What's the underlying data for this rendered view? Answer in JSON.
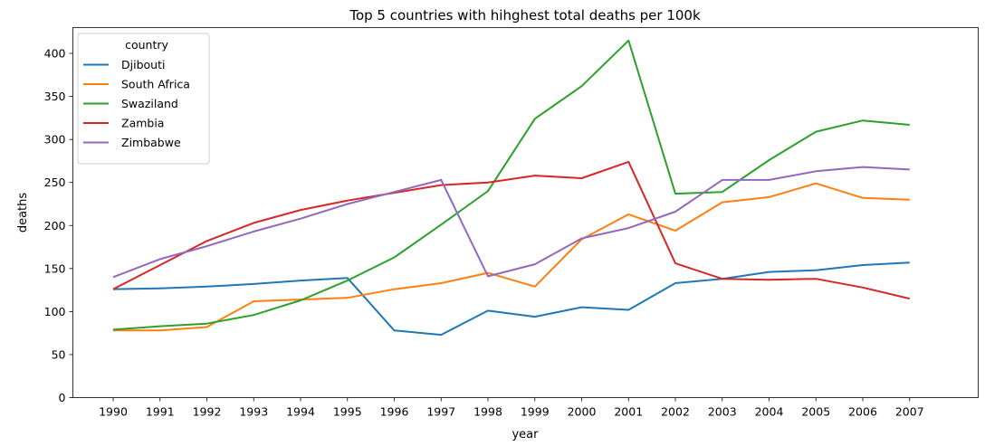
{
  "chart_data": {
    "type": "line",
    "title": "Top 5 countries with hihghest total deaths per 100k",
    "xlabel": "year",
    "ylabel": "deaths",
    "x": [
      "1990",
      "1991",
      "1992",
      "1993",
      "1994",
      "1995",
      "1996",
      "1997",
      "1998",
      "1999",
      "2000",
      "2001",
      "2002",
      "2003",
      "2004",
      "2005",
      "2006",
      "2007"
    ],
    "ylim": [
      0,
      430
    ],
    "yticks": [
      0,
      50,
      100,
      150,
      200,
      250,
      300,
      350,
      400
    ],
    "grid": false,
    "legend": {
      "title": "country",
      "placement": "top-left"
    },
    "series": [
      {
        "name": "Djibouti",
        "color": "#1f77b4",
        "values": [
          126,
          127,
          129,
          132,
          136,
          139,
          78,
          73,
          101,
          94,
          105,
          102,
          133,
          138,
          146,
          148,
          154,
          157
        ]
      },
      {
        "name": "South Africa",
        "color": "#ff7f0e",
        "values": [
          78,
          78,
          82,
          112,
          114,
          116,
          126,
          133,
          145,
          129,
          184,
          213,
          194,
          227,
          233,
          249,
          232,
          230
        ]
      },
      {
        "name": "Swaziland",
        "color": "#2ca02c",
        "values": [
          79,
          83,
          86,
          96,
          113,
          136,
          163,
          201,
          240,
          324,
          362,
          415,
          237,
          239,
          276,
          309,
          322,
          317
        ]
      },
      {
        "name": "Zambia",
        "color": "#d62728",
        "values": [
          126,
          154,
          182,
          203,
          218,
          229,
          238,
          247,
          250,
          258,
          255,
          274,
          156,
          138,
          137,
          138,
          128,
          115
        ]
      },
      {
        "name": "Zimbabwe",
        "color": "#9467bd",
        "values": [
          140,
          161,
          176,
          193,
          208,
          225,
          239,
          253,
          141,
          155,
          185,
          197,
          216,
          253,
          253,
          263,
          268,
          265
        ]
      }
    ]
  }
}
